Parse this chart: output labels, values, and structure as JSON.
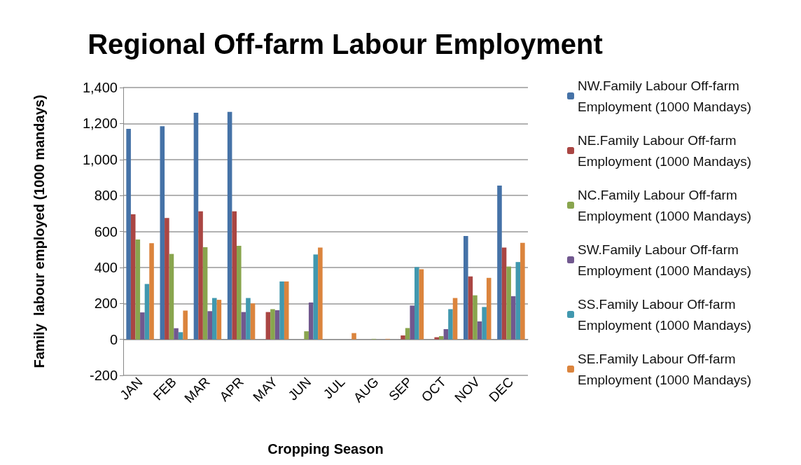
{
  "chart_data": {
    "type": "bar",
    "title": "Regional Off-farm Labour Employment",
    "xlabel": "Cropping Season",
    "ylabel": "Family  labour employed (1000 mandays)",
    "categories": [
      "JAN",
      "FEB",
      "MAR",
      "APR",
      "MAY",
      "JUN",
      "JUL",
      "AUG",
      "SEP",
      "OCT",
      "NOV",
      "DEC"
    ],
    "series": [
      {
        "name": "NW.Family Labour Off-farm Employment (1000 Mandays)",
        "color": "#4572a7",
        "values": [
          1170,
          1185,
          1260,
          1265,
          null,
          null,
          null,
          null,
          null,
          null,
          575,
          855
        ]
      },
      {
        "name": "NE.Family Labour Off-farm Employment (1000 Mandays)",
        "color": "#aa4643",
        "values": [
          695,
          675,
          712,
          712,
          152,
          null,
          null,
          null,
          22,
          12,
          350,
          510
        ]
      },
      {
        "name": "NC.Family Labour Off-farm Employment (1000 Mandays)",
        "color": "#89a54e",
        "values": [
          555,
          475,
          512,
          520,
          168,
          45,
          null,
          3,
          63,
          18,
          245,
          405
        ]
      },
      {
        "name": "SW.Family Labour Off-farm Employment (1000 Mandays)",
        "color": "#71588f",
        "values": [
          150,
          62,
          157,
          152,
          162,
          205,
          null,
          null,
          188,
          57,
          100,
          240
        ]
      },
      {
        "name": "SS.Family Labour Off-farm Employment (1000 Mandays)",
        "color": "#4198af",
        "values": [
          308,
          40,
          230,
          230,
          322,
          472,
          null,
          null,
          402,
          168,
          180,
          430
        ]
      },
      {
        "name": "SE.Family Labour Off-farm Employment (1000 Mandays)",
        "color": "#db843d",
        "values": [
          535,
          160,
          220,
          200,
          322,
          510,
          35,
          3,
          390,
          230,
          342,
          537
        ]
      }
    ],
    "ylim": [
      -200,
      1400
    ],
    "yticks": [
      {
        "value": -200,
        "label": "-200"
      },
      {
        "value": 0,
        "label": "0"
      },
      {
        "value": 200,
        "label": "200"
      },
      {
        "value": 400,
        "label": "400"
      },
      {
        "value": 600,
        "label": "600"
      },
      {
        "value": 800,
        "label": "800"
      },
      {
        "value": 1000,
        "label": "1,000"
      },
      {
        "value": 1200,
        "label": "1,200"
      },
      {
        "value": 1400,
        "label": "1,400"
      }
    ],
    "grid": "y",
    "legend": "right"
  }
}
